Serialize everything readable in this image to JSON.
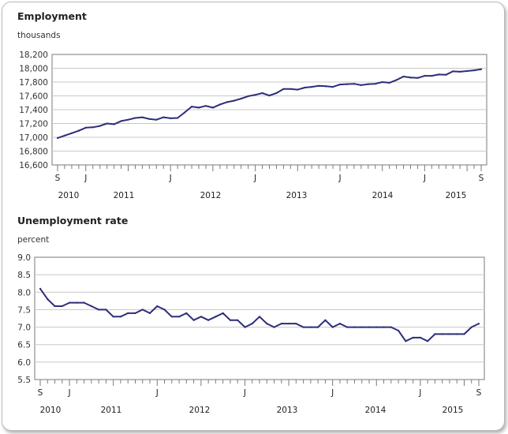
{
  "chart_data": [
    {
      "type": "line",
      "title": "Employment",
      "ylabel": "thousands",
      "xlabel": "",
      "ylim": [
        16600,
        18200
      ],
      "yticks": [
        "16,600",
        "16,800",
        "17,000",
        "17,200",
        "17,400",
        "17,600",
        "17,800",
        "18,000",
        "18,200"
      ],
      "month_labels": [
        "S",
        "J",
        "J",
        "J",
        "J",
        "J",
        "S"
      ],
      "year_labels": [
        "2010",
        "2011",
        "2012",
        "2013",
        "2014",
        "2015"
      ],
      "x": [
        "2010-09",
        "2010-10",
        "2010-11",
        "2010-12",
        "2011-01",
        "2011-02",
        "2011-03",
        "2011-04",
        "2011-05",
        "2011-06",
        "2011-07",
        "2011-08",
        "2011-09",
        "2011-10",
        "2011-11",
        "2011-12",
        "2012-01",
        "2012-02",
        "2012-03",
        "2012-04",
        "2012-05",
        "2012-06",
        "2012-07",
        "2012-08",
        "2012-09",
        "2012-10",
        "2012-11",
        "2012-12",
        "2013-01",
        "2013-02",
        "2013-03",
        "2013-04",
        "2013-05",
        "2013-06",
        "2013-07",
        "2013-08",
        "2013-09",
        "2013-10",
        "2013-11",
        "2013-12",
        "2014-01",
        "2014-02",
        "2014-03",
        "2014-04",
        "2014-05",
        "2014-06",
        "2014-07",
        "2014-08",
        "2014-09",
        "2014-10",
        "2014-11",
        "2014-12",
        "2015-01",
        "2015-02",
        "2015-03",
        "2015-04",
        "2015-05",
        "2015-06",
        "2015-07",
        "2015-08",
        "2015-09"
      ],
      "values": [
        16990,
        17025,
        17060,
        17095,
        17140,
        17145,
        17165,
        17200,
        17190,
        17235,
        17255,
        17280,
        17290,
        17265,
        17255,
        17290,
        17275,
        17280,
        17360,
        17445,
        17430,
        17455,
        17430,
        17475,
        17510,
        17530,
        17560,
        17595,
        17615,
        17640,
        17605,
        17640,
        17700,
        17700,
        17690,
        17720,
        17730,
        17745,
        17740,
        17730,
        17765,
        17770,
        17775,
        17755,
        17770,
        17775,
        17800,
        17790,
        17830,
        17880,
        17865,
        17860,
        17890,
        17890,
        17910,
        17905,
        17955,
        17950,
        17960,
        17970,
        17985
      ],
      "color": "#2e2d7a"
    },
    {
      "type": "line",
      "title": "Unemployment rate",
      "ylabel": "percent",
      "xlabel": "",
      "ylim": [
        5.5,
        9.0
      ],
      "yticks": [
        "5.5",
        "6.0",
        "6.5",
        "7.0",
        "7.5",
        "8.0",
        "8.5",
        "9.0"
      ],
      "month_labels": [
        "S",
        "J",
        "J",
        "J",
        "J",
        "J",
        "S"
      ],
      "year_labels": [
        "2010",
        "2011",
        "2012",
        "2013",
        "2014",
        "2015"
      ],
      "x": [
        "2010-09",
        "2010-10",
        "2010-11",
        "2010-12",
        "2011-01",
        "2011-02",
        "2011-03",
        "2011-04",
        "2011-05",
        "2011-06",
        "2011-07",
        "2011-08",
        "2011-09",
        "2011-10",
        "2011-11",
        "2011-12",
        "2012-01",
        "2012-02",
        "2012-03",
        "2012-04",
        "2012-05",
        "2012-06",
        "2012-07",
        "2012-08",
        "2012-09",
        "2012-10",
        "2012-11",
        "2012-12",
        "2013-01",
        "2013-02",
        "2013-03",
        "2013-04",
        "2013-05",
        "2013-06",
        "2013-07",
        "2013-08",
        "2013-09",
        "2013-10",
        "2013-11",
        "2013-12",
        "2014-01",
        "2014-02",
        "2014-03",
        "2014-04",
        "2014-05",
        "2014-06",
        "2014-07",
        "2014-08",
        "2014-09",
        "2014-10",
        "2014-11",
        "2014-12",
        "2015-01",
        "2015-02",
        "2015-03",
        "2015-04",
        "2015-05",
        "2015-06",
        "2015-07",
        "2015-08",
        "2015-09"
      ],
      "values": [
        8.1,
        7.8,
        7.6,
        7.6,
        7.7,
        7.7,
        7.7,
        7.6,
        7.5,
        7.5,
        7.3,
        7.3,
        7.4,
        7.4,
        7.5,
        7.4,
        7.6,
        7.5,
        7.3,
        7.3,
        7.4,
        7.2,
        7.3,
        7.2,
        7.3,
        7.4,
        7.2,
        7.2,
        7.0,
        7.1,
        7.3,
        7.1,
        7.0,
        7.1,
        7.1,
        7.1,
        7.0,
        7.0,
        7.0,
        7.2,
        7.0,
        7.1,
        7.0,
        7.0,
        7.0,
        7.0,
        7.0,
        7.0,
        7.0,
        6.9,
        6.6,
        6.7,
        6.7,
        6.6,
        6.8,
        6.8,
        6.8,
        6.8,
        6.8,
        7.0,
        7.1
      ],
      "color": "#2e2d7a"
    }
  ]
}
